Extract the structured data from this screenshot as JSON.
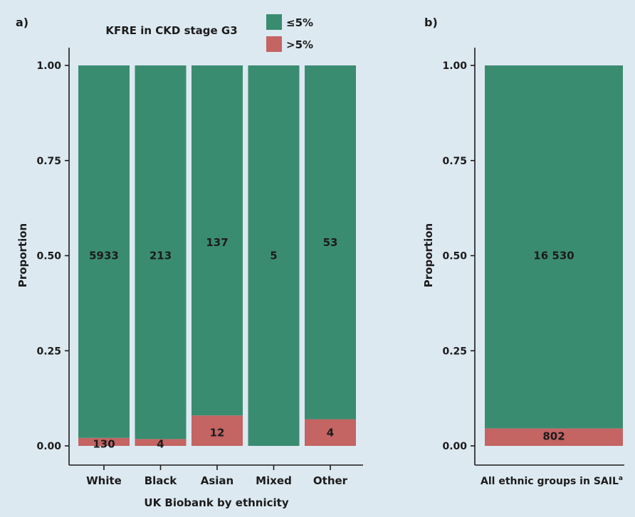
{
  "colors": {
    "background": "#dde9f1",
    "le5": "#3a8c70",
    "gt5": "#c46463",
    "axis": "#1c1c1c"
  },
  "legend": {
    "items": [
      {
        "label": "≤5%",
        "color": "#3a8c70"
      },
      {
        "label": ">5%",
        "color": "#c46463"
      }
    ]
  },
  "chart_data": [
    {
      "type": "bar",
      "stacked": true,
      "panel_label": "a)",
      "title": "KFRE in CKD stage G3",
      "xlabel": "UK Biobank by ethnicity",
      "ylabel": "Proportion",
      "ylim": [
        0,
        1
      ],
      "yticks": [
        "0.00",
        "0.25",
        "0.50",
        "0.75",
        "1.00"
      ],
      "categories": [
        "White",
        "Black",
        "Asian",
        "Mixed",
        "Other"
      ],
      "series": [
        {
          "name": ">5%",
          "values": [
            0.021,
            0.018,
            0.08,
            0,
            0.07
          ],
          "labels": [
            "130",
            "4",
            "12",
            "",
            "4"
          ]
        },
        {
          "name": "≤5%",
          "values": [
            0.979,
            0.982,
            0.92,
            1,
            0.93
          ],
          "labels": [
            "5933",
            "213",
            "137",
            "5",
            "53"
          ]
        }
      ],
      "label_proportion": [
        {
          "le5": 0.5,
          "gt5": 0.005
        },
        {
          "le5": 0.5,
          "gt5": 0.005
        },
        {
          "le5": 0.535,
          "gt5": 0.035
        },
        {
          "le5": 0.5,
          "gt5": null
        },
        {
          "le5": 0.535,
          "gt5": 0.035
        }
      ]
    },
    {
      "type": "bar",
      "stacked": true,
      "panel_label": "b)",
      "title": "",
      "xlabel": "All ethnic groups in SAIL",
      "xlabel_sup": "a",
      "ylabel": "Proportion",
      "ylim": [
        0,
        1
      ],
      "yticks": [
        "0.00",
        "0.25",
        "0.50",
        "0.75",
        "1.00"
      ],
      "categories": [
        ""
      ],
      "series": [
        {
          "name": ">5%",
          "values": [
            0.046
          ],
          "labels": [
            "802"
          ]
        },
        {
          "name": "≤5%",
          "values": [
            0.954
          ],
          "labels": [
            "16 530"
          ]
        }
      ],
      "label_proportion": [
        {
          "le5": 0.5,
          "gt5": 0.025
        }
      ]
    }
  ]
}
